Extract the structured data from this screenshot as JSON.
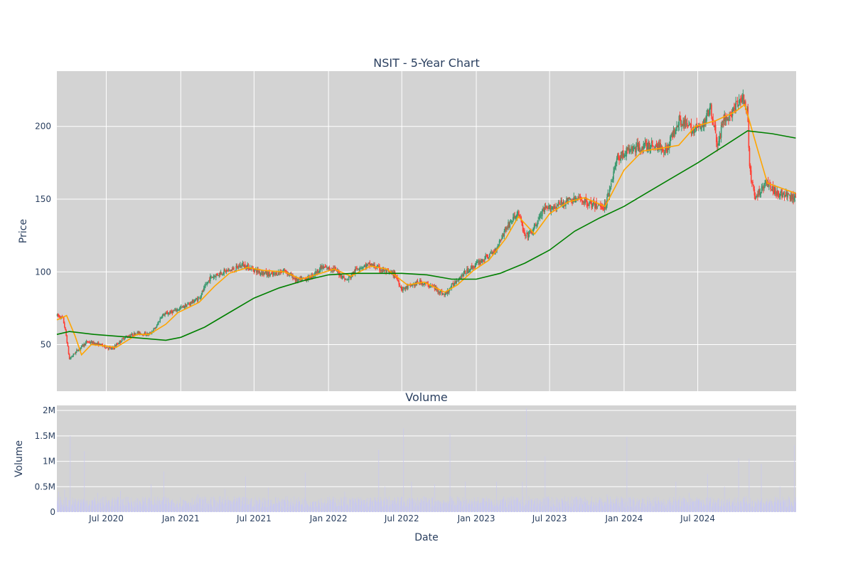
{
  "chart_data": [
    {
      "type": "candlestick",
      "title": "NSIT - 5-Year Chart",
      "xlabel": "",
      "ylabel": "Price",
      "x_range": [
        "2020-03-01",
        "2025-03-01"
      ],
      "ylim": [
        18,
        238
      ],
      "y_ticks": [
        50,
        100,
        150,
        200
      ],
      "grid": true,
      "colors": {
        "increasing": "#3d9970",
        "decreasing": "#ff4136",
        "ma_short": "#ffa500",
        "ma_long": "#008000",
        "plot_bg": "#d3d3d3",
        "grid": "#ffffff"
      },
      "price_path": [
        [
          "2020-03-02",
          70
        ],
        [
          "2020-03-16",
          68
        ],
        [
          "2020-03-23",
          58
        ],
        [
          "2020-04-01",
          40
        ],
        [
          "2020-04-20",
          46
        ],
        [
          "2020-05-15",
          52
        ],
        [
          "2020-06-15",
          50
        ],
        [
          "2020-07-15",
          47
        ],
        [
          "2020-08-15",
          55
        ],
        [
          "2020-09-15",
          58
        ],
        [
          "2020-10-15",
          57
        ],
        [
          "2020-11-01",
          62
        ],
        [
          "2020-11-15",
          70
        ],
        [
          "2020-12-15",
          73
        ],
        [
          "2021-01-15",
          77
        ],
        [
          "2021-02-15",
          82
        ],
        [
          "2021-03-15",
          96
        ],
        [
          "2021-04-15",
          100
        ],
        [
          "2021-05-15",
          102
        ],
        [
          "2021-06-01",
          105
        ],
        [
          "2021-07-15",
          100
        ],
        [
          "2021-08-15",
          98
        ],
        [
          "2021-09-15",
          101
        ],
        [
          "2021-10-15",
          94
        ],
        [
          "2021-11-15",
          96
        ],
        [
          "2021-12-15",
          103
        ],
        [
          "2022-01-15",
          102
        ],
        [
          "2022-02-15",
          94
        ],
        [
          "2022-03-15",
          103
        ],
        [
          "2022-04-15",
          105
        ],
        [
          "2022-05-15",
          101
        ],
        [
          "2022-06-15",
          98
        ],
        [
          "2022-07-01",
          88
        ],
        [
          "2022-08-15",
          93
        ],
        [
          "2022-09-15",
          90
        ],
        [
          "2022-10-15",
          84
        ],
        [
          "2022-11-15",
          95
        ],
        [
          "2022-12-15",
          102
        ],
        [
          "2023-01-15",
          108
        ],
        [
          "2023-02-15",
          114
        ],
        [
          "2023-03-15",
          130
        ],
        [
          "2023-04-15",
          141
        ],
        [
          "2023-05-01",
          124
        ],
        [
          "2023-05-20",
          128
        ],
        [
          "2023-06-15",
          142
        ],
        [
          "2023-07-15",
          145
        ],
        [
          "2023-08-15",
          149
        ],
        [
          "2023-09-15",
          150
        ],
        [
          "2023-10-15",
          146
        ],
        [
          "2023-11-15",
          145
        ],
        [
          "2023-12-15",
          178
        ],
        [
          "2024-01-15",
          184
        ],
        [
          "2024-02-15",
          186
        ],
        [
          "2024-03-15",
          187
        ],
        [
          "2024-04-15",
          184
        ],
        [
          "2024-05-15",
          205
        ],
        [
          "2024-06-15",
          198
        ],
        [
          "2024-07-15",
          200
        ],
        [
          "2024-08-01",
          215
        ],
        [
          "2024-08-20",
          185
        ],
        [
          "2024-09-01",
          205
        ],
        [
          "2024-09-15",
          206
        ],
        [
          "2024-10-01",
          213
        ],
        [
          "2024-10-20",
          220
        ],
        [
          "2024-11-01",
          208
        ],
        [
          "2024-11-06",
          170
        ],
        [
          "2024-11-20",
          150
        ],
        [
          "2024-12-15",
          162
        ],
        [
          "2025-01-10",
          155
        ],
        [
          "2025-02-28",
          150
        ]
      ],
      "ma_short": [
        [
          "2020-03-01",
          67
        ],
        [
          "2020-03-25",
          70
        ],
        [
          "2020-04-15",
          56
        ],
        [
          "2020-05-01",
          43
        ],
        [
          "2020-05-25",
          50
        ],
        [
          "2020-07-01",
          49
        ],
        [
          "2020-07-25",
          48
        ],
        [
          "2020-09-15",
          57
        ],
        [
          "2020-10-15",
          57
        ],
        [
          "2020-11-25",
          64
        ],
        [
          "2020-12-25",
          72
        ],
        [
          "2021-02-15",
          79
        ],
        [
          "2021-03-25",
          90
        ],
        [
          "2021-05-01",
          99
        ],
        [
          "2021-06-15",
          103
        ],
        [
          "2021-07-25",
          101
        ],
        [
          "2021-09-15",
          100
        ],
        [
          "2021-10-25",
          95
        ],
        [
          "2021-12-01",
          98
        ],
        [
          "2022-01-15",
          102
        ],
        [
          "2022-02-25",
          97
        ],
        [
          "2022-04-15",
          104
        ],
        [
          "2022-05-25",
          102
        ],
        [
          "2022-07-15",
          91
        ],
        [
          "2022-08-25",
          93
        ],
        [
          "2022-10-15",
          86
        ],
        [
          "2022-11-15",
          91
        ],
        [
          "2022-12-25",
          101
        ],
        [
          "2023-02-01",
          108
        ],
        [
          "2023-03-15",
          123
        ],
        [
          "2023-04-15",
          138
        ],
        [
          "2023-05-25",
          126
        ],
        [
          "2023-07-01",
          140
        ],
        [
          "2023-08-15",
          148
        ],
        [
          "2023-09-25",
          151
        ],
        [
          "2023-11-15",
          145
        ],
        [
          "2024-01-01",
          170
        ],
        [
          "2024-02-15",
          183
        ],
        [
          "2024-04-01",
          185
        ],
        [
          "2024-05-15",
          187
        ],
        [
          "2024-06-25",
          200
        ],
        [
          "2024-08-15",
          204
        ],
        [
          "2024-10-01",
          210
        ],
        [
          "2024-10-25",
          215
        ],
        [
          "2024-11-25",
          185
        ],
        [
          "2024-12-20",
          161
        ],
        [
          "2025-02-28",
          154
        ]
      ],
      "ma_long": [
        [
          "2020-03-01",
          57
        ],
        [
          "2020-04-01",
          59
        ],
        [
          "2020-06-01",
          57
        ],
        [
          "2020-09-01",
          55
        ],
        [
          "2020-11-25",
          53
        ],
        [
          "2021-01-01",
          55
        ],
        [
          "2021-03-01",
          62
        ],
        [
          "2021-05-01",
          72
        ],
        [
          "2021-07-01",
          82
        ],
        [
          "2021-09-01",
          89
        ],
        [
          "2021-11-01",
          94
        ],
        [
          "2022-01-01",
          98
        ],
        [
          "2022-03-01",
          99
        ],
        [
          "2022-05-01",
          99
        ],
        [
          "2022-07-01",
          99
        ],
        [
          "2022-09-01",
          98
        ],
        [
          "2022-11-01",
          95
        ],
        [
          "2023-01-01",
          95
        ],
        [
          "2023-03-01",
          99
        ],
        [
          "2023-05-01",
          106
        ],
        [
          "2023-07-01",
          115
        ],
        [
          "2023-09-01",
          128
        ],
        [
          "2023-11-01",
          137
        ],
        [
          "2024-01-01",
          145
        ],
        [
          "2024-03-01",
          155
        ],
        [
          "2024-05-01",
          165
        ],
        [
          "2024-07-01",
          175
        ],
        [
          "2024-09-01",
          186
        ],
        [
          "2024-11-01",
          197
        ],
        [
          "2025-01-01",
          195
        ],
        [
          "2025-02-28",
          192
        ]
      ]
    },
    {
      "type": "bar",
      "title": "Volume",
      "xlabel": "Date",
      "ylabel": "Volume",
      "ylim": [
        0,
        2100000
      ],
      "y_ticks": [
        0,
        500000,
        1000000,
        1500000,
        2000000
      ],
      "y_tick_labels": [
        "0",
        "0.5M",
        "1M",
        "1.5M",
        "2M"
      ],
      "x_tick_labels": [
        "Jul 2020",
        "Jan 2021",
        "Jul 2021",
        "Jan 2022",
        "Jul 2022",
        "Jan 2023",
        "Jul 2023",
        "Jan 2024",
        "Jul 2024"
      ],
      "x_tick_dates": [
        "2020-07-01",
        "2021-01-01",
        "2021-07-01",
        "2022-01-01",
        "2022-07-01",
        "2023-01-01",
        "2023-07-01",
        "2024-01-01",
        "2024-07-01"
      ],
      "bar_color": "#c8c8f0",
      "base_volume": 200000,
      "spikes": [
        [
          "2020-03-05",
          400000
        ],
        [
          "2020-03-20",
          450000
        ],
        [
          "2020-04-03",
          1500000
        ],
        [
          "2020-04-12",
          750000
        ],
        [
          "2020-04-25",
          720000
        ],
        [
          "2020-05-08",
          1200000
        ],
        [
          "2020-06-10",
          380000
        ],
        [
          "2020-08-05",
          420000
        ],
        [
          "2020-10-20",
          550000
        ],
        [
          "2020-11-20",
          800000
        ],
        [
          "2021-02-12",
          350000
        ],
        [
          "2021-04-20",
          450000
        ],
        [
          "2021-05-15",
          780000
        ],
        [
          "2021-06-10",
          700000
        ],
        [
          "2021-08-05",
          480000
        ],
        [
          "2021-10-10",
          480000
        ],
        [
          "2021-11-05",
          780000
        ],
        [
          "2022-02-10",
          400000
        ],
        [
          "2022-03-20",
          330000
        ],
        [
          "2022-05-05",
          1230000
        ],
        [
          "2022-05-20",
          500000
        ],
        [
          "2022-07-05",
          1650000
        ],
        [
          "2022-07-25",
          600000
        ],
        [
          "2022-09-20",
          550000
        ],
        [
          "2022-10-28",
          1550000
        ],
        [
          "2022-12-05",
          600000
        ],
        [
          "2023-02-20",
          600000
        ],
        [
          "2023-04-25",
          600000
        ],
        [
          "2023-05-05",
          2050000
        ],
        [
          "2023-05-20",
          620000
        ],
        [
          "2023-06-20",
          1100000
        ],
        [
          "2023-07-15",
          1300000
        ],
        [
          "2023-08-05",
          500000
        ],
        [
          "2023-11-20",
          350000
        ],
        [
          "2024-01-08",
          1480000
        ],
        [
          "2024-02-10",
          600000
        ],
        [
          "2024-05-08",
          600000
        ],
        [
          "2024-06-10",
          380000
        ],
        [
          "2024-07-25",
          750000
        ],
        [
          "2024-09-05",
          500000
        ],
        [
          "2024-10-10",
          1060000
        ],
        [
          "2024-11-05",
          1050000
        ],
        [
          "2024-12-05",
          950000
        ],
        [
          "2025-01-20",
          500000
        ],
        [
          "2025-02-25",
          1320000
        ]
      ]
    }
  ]
}
